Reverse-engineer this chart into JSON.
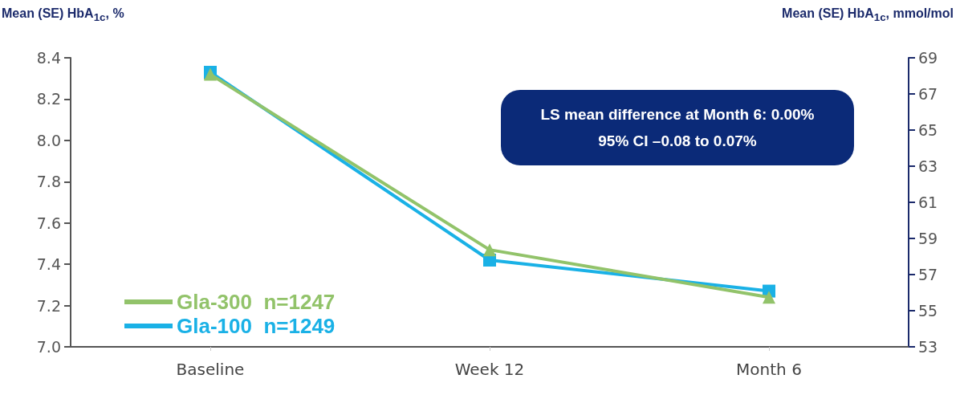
{
  "chart_data": {
    "type": "line",
    "categories": [
      "Baseline",
      "Week 12",
      "Month 6"
    ],
    "series": [
      {
        "name": "Gla-300  n=1247",
        "color": "#92c36a",
        "marker": "triangle",
        "values": [
          8.32,
          7.47,
          7.24
        ],
        "errors": [
          0.02,
          null,
          null
        ]
      },
      {
        "name": "Gla-100  n=1249",
        "color": "#1ab1e6",
        "marker": "square",
        "values": [
          8.33,
          7.42,
          7.27
        ]
      }
    ],
    "ylabel": "Mean (SE) HbA$_{1c}$, %",
    "y2label": "Mean (SE) HbA$_{1c}$, mmol/mol",
    "ylim": [
      7.0,
      8.4
    ],
    "yticks": [
      {
        "value": 7.0,
        "label": "7.0"
      },
      {
        "value": 7.2,
        "label": "7.2"
      },
      {
        "value": 7.4,
        "label": "7.4"
      },
      {
        "value": 7.6,
        "label": "7.6"
      },
      {
        "value": 7.8,
        "label": "7.8"
      },
      {
        "value": 8.0,
        "label": "8.0"
      },
      {
        "value": 8.2,
        "label": "8.2"
      },
      {
        "value": 8.4,
        "label": "8.4"
      }
    ],
    "y2lim": [
      53,
      69
    ],
    "y2ticks": [
      53,
      55,
      57,
      59,
      61,
      63,
      65,
      67,
      69
    ],
    "annotations": [
      "LS mean difference at Month 6: 0.00%",
      "95% CI –0.08 to 0.07%"
    ],
    "grid": false,
    "legend": "bottom left",
    "line_style": "solid"
  }
}
